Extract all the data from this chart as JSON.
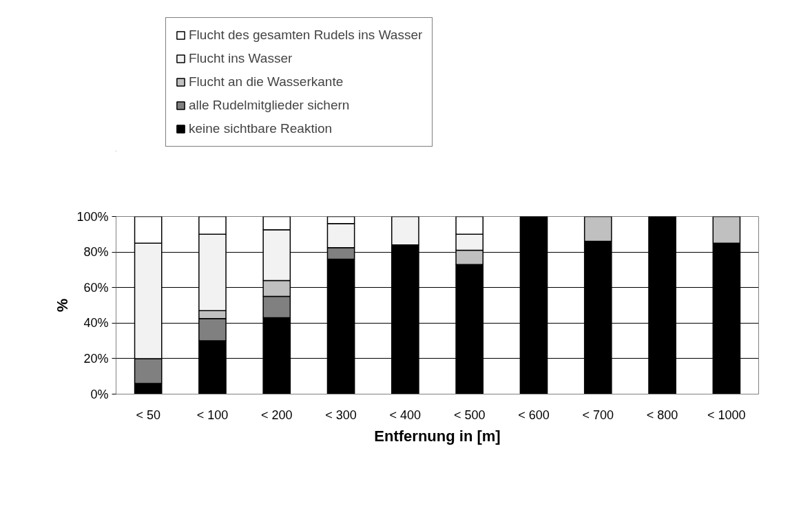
{
  "chart_data": {
    "type": "bar",
    "stacked": true,
    "xlabel": "Entfernung in [m]",
    "ylabel": "%",
    "categories": [
      "< 50",
      "< 100",
      "< 200",
      "< 300",
      "< 400",
      "< 500",
      "< 600",
      "< 700",
      "< 800",
      "< 1000"
    ],
    "series": [
      {
        "name": "keine sichtbare Reaktion",
        "color": "#000000",
        "values": [
          6,
          30,
          43,
          76,
          84,
          73,
          100,
          86,
          100,
          85
        ]
      },
      {
        "name": "alle Rudelmitglieder sichern",
        "color": "#808080",
        "values": [
          14,
          12.5,
          12,
          6.5,
          0,
          0,
          0,
          0,
          0,
          0
        ]
      },
      {
        "name": "Flucht an die Wasserkante",
        "color": "#c0c0c0",
        "values": [
          0,
          4.5,
          9,
          0,
          0,
          8,
          0,
          14,
          0,
          15
        ]
      },
      {
        "name": "Flucht ins Wasser",
        "color": "#f2f2f2",
        "values": [
          65,
          43,
          28.5,
          13.5,
          16,
          9,
          0,
          0,
          0,
          0
        ]
      },
      {
        "name": "Flucht des gesamten Rudels ins Wasser",
        "color": "#ffffff",
        "values": [
          15,
          10,
          7.5,
          4,
          0,
          10,
          0,
          0,
          0,
          0
        ]
      }
    ],
    "ylim": [
      0,
      100
    ],
    "yticks": [
      {
        "value": 0,
        "label": "0%"
      },
      {
        "value": 20,
        "label": "20%"
      },
      {
        "value": 40,
        "label": "40%"
      },
      {
        "value": 60,
        "label": "60%"
      },
      {
        "value": 80,
        "label": "80%"
      },
      {
        "value": 100,
        "label": "100%"
      }
    ],
    "grid": "y",
    "legend": "top"
  }
}
